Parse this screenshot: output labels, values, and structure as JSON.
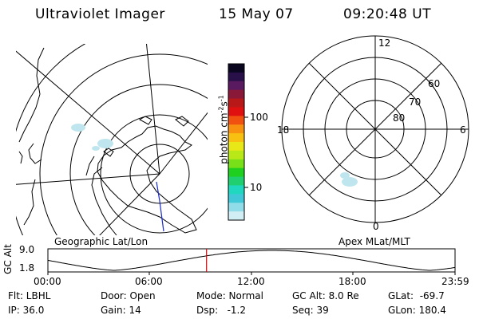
{
  "header": {
    "instrument": "Ultraviolet Imager",
    "date": "15 May 07",
    "time": "09:20:48 UT"
  },
  "geo_panel": {
    "label": "Geographic Lat/Lon"
  },
  "apex_panel": {
    "label": "Apex MLat/MLT",
    "mlt_labels": [
      "12",
      "18",
      "6",
      "0"
    ],
    "mlat_labels": [
      "60",
      "70",
      "80"
    ]
  },
  "colorbar": {
    "unit": "photon cm",
    "unit_exp": "-2",
    "unit_s": "s",
    "unit_s_exp": "-1",
    "ticks": [
      "100",
      "10"
    ],
    "colors": [
      "#0a0620",
      "#2a1048",
      "#5a1a60",
      "#8a1838",
      "#b81818",
      "#e01010",
      "#f05010",
      "#f89010",
      "#f8c010",
      "#e8e818",
      "#b8e818",
      "#78e018",
      "#20d020",
      "#20d070",
      "#20d8c0",
      "#40c8d8",
      "#90dce8",
      "#d0eef4"
    ]
  },
  "gc_alt_plot": {
    "ylabel": "GC Alt",
    "yticks": [
      "9.0",
      "1.8"
    ],
    "xticks": [
      "00:00",
      "06:00",
      "12:00",
      "18:00",
      "23:59"
    ],
    "current_marker_hour": 9.35
  },
  "status": {
    "flt": "Flt: LBHL",
    "ip": "IP: 36.0",
    "door": "Door: Open",
    "gain": "Gain: 14",
    "mode": "Mode: Normal",
    "dsp": "Dsp:   -1.2",
    "gc_alt": "GC Alt: 8.0 Re",
    "seq": "Seq: 39",
    "glat": "GLat:  -69.7",
    "glon": "GLon: 180.4"
  }
}
